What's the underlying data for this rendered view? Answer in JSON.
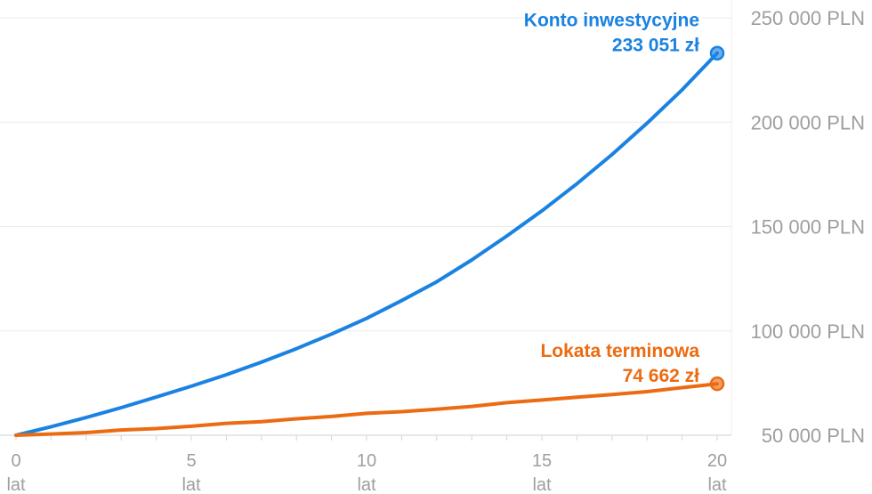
{
  "chart_data": {
    "type": "line",
    "x_unit": "lat",
    "x_ticks": [
      0,
      5,
      10,
      15,
      20
    ],
    "y_ticks": [
      "50 000 PLN",
      "100 000 PLN",
      "150 000 PLN",
      "200 000 PLN",
      "250 000 PLN"
    ],
    "y_tick_values": [
      50000,
      100000,
      150000,
      200000,
      250000
    ],
    "ylim": [
      50000,
      250000
    ],
    "xlim": [
      0,
      20
    ],
    "grid": true,
    "series": [
      {
        "name": "Konto inwestycyjne",
        "end_label": "233 051 zł",
        "color": "#1a82e2",
        "x": [
          0,
          1,
          2,
          3,
          4,
          5,
          6,
          7,
          8,
          9,
          10,
          11,
          12,
          13,
          14,
          15,
          16,
          17,
          18,
          19,
          20
        ],
        "values": [
          50000,
          54100,
          58500,
          63200,
          68300,
          73500,
          79000,
          85000,
          91500,
          98500,
          106000,
          114500,
          123500,
          134000,
          145500,
          157500,
          170500,
          184500,
          199500,
          215500,
          233051
        ]
      },
      {
        "name": "Lokata terminowa",
        "end_label": "74 662 zł",
        "color": "#ec6b12",
        "x": [
          0,
          1,
          2,
          3,
          4,
          5,
          6,
          7,
          8,
          9,
          10,
          11,
          12,
          13,
          14,
          15,
          16,
          17,
          18,
          19,
          20
        ],
        "values": [
          50000,
          50600,
          51300,
          52500,
          53200,
          54300,
          55700,
          56500,
          57900,
          59000,
          60500,
          61300,
          62500,
          63800,
          65600,
          66900,
          68200,
          69500,
          70900,
          72800,
          74662
        ]
      }
    ]
  }
}
